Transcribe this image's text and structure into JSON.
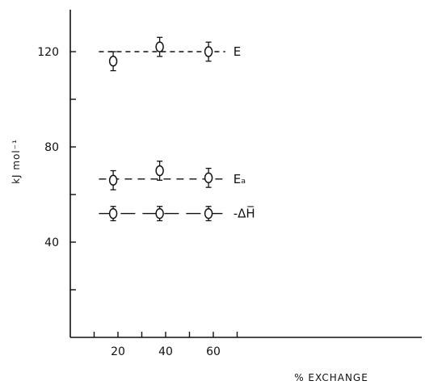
{
  "chart_data": {
    "type": "scatter",
    "title": "",
    "xlabel": "% EXCHANGE",
    "ylabel": "kJ mol⁻¹",
    "xlim": [
      0,
      75
    ],
    "ylim": [
      0,
      135
    ],
    "x_ticks": [
      20,
      40,
      60
    ],
    "x_minor_ticks": [
      10,
      30,
      50,
      70
    ],
    "y_ticks": [
      40,
      80,
      120
    ],
    "y_minor_ticks": [
      20,
      60,
      100
    ],
    "grid": false,
    "error_bars": true,
    "series": [
      {
        "name": "E",
        "x": [
          18,
          37.5,
          58
        ],
        "y": [
          116,
          122,
          120
        ],
        "y_err": [
          4,
          4,
          4
        ],
        "fit_value": 120,
        "fit_x": [
          12,
          65
        ]
      },
      {
        "name": "Eₐ",
        "x": [
          18,
          37.5,
          58
        ],
        "y": [
          66,
          70,
          67
        ],
        "y_err": [
          4,
          4,
          4
        ],
        "fit_value": 66.5,
        "fit_x": [
          12,
          65
        ]
      },
      {
        "name": "-ΔH̅",
        "x": [
          18,
          37.5,
          58
        ],
        "y": [
          52,
          52,
          52
        ],
        "y_err": [
          3,
          3,
          3
        ],
        "fit_value": 52,
        "fit_x": [
          12,
          65
        ]
      }
    ]
  }
}
